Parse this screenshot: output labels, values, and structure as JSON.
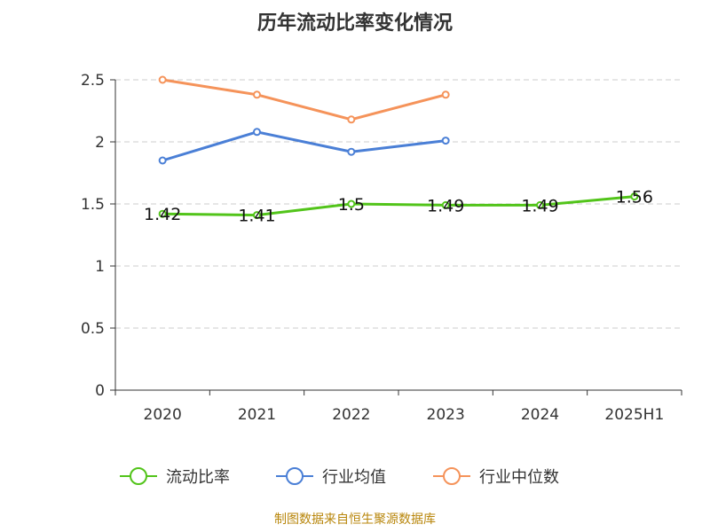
{
  "chart_data": {
    "type": "line",
    "title": "历年流动比率变化情况",
    "categories": [
      "2020",
      "2021",
      "2022",
      "2023",
      "2024",
      "2025H1"
    ],
    "ylim": [
      0,
      2.5
    ],
    "yticks": [
      "0",
      "0.5",
      "1",
      "1.5",
      "2",
      "2.5"
    ],
    "grid": true,
    "legend_position": "bottom",
    "series": [
      {
        "name": "流动比率",
        "color": "#52c41a",
        "values": [
          1.42,
          1.41,
          1.5,
          1.49,
          1.49,
          1.56
        ],
        "labels": [
          "1.42",
          "1.41",
          "1.5",
          "1.49",
          "1.49",
          "1.56"
        ]
      },
      {
        "name": "行业均值",
        "color": "#4a7fd6",
        "values": [
          1.85,
          2.08,
          1.92,
          2.01,
          null,
          null
        ]
      },
      {
        "name": "行业中位数",
        "color": "#f5935a",
        "values": [
          2.5,
          2.38,
          2.18,
          2.38,
          null,
          null
        ]
      }
    ]
  },
  "source": "制图数据来自恒生聚源数据库"
}
